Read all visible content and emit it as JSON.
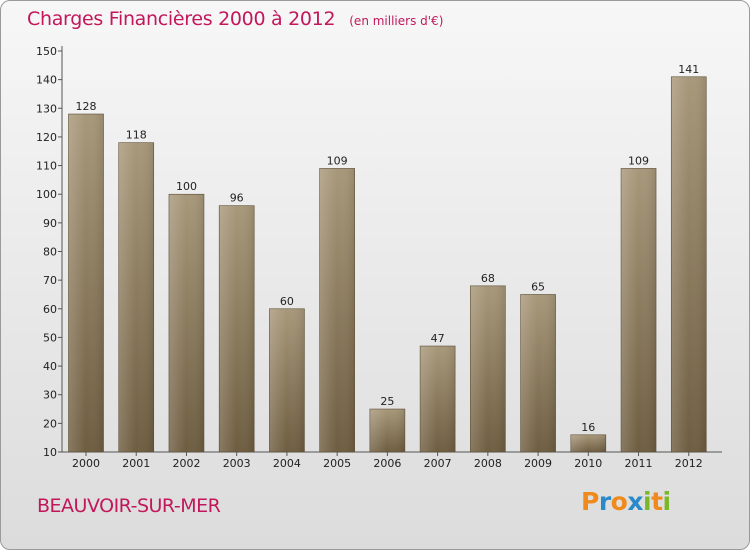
{
  "header": {
    "title": "Charges Financières 2000 à 2012",
    "unit": "(en milliers d'€)"
  },
  "footer": {
    "commune": "BEAUVOIR-SUR-MER",
    "logo_letters": [
      "P",
      "r",
      "o",
      "x",
      "i",
      "t",
      "i"
    ],
    "logo_colors": [
      "#f08a1c",
      "#2a8ac9",
      "#f08a1c",
      "#2a8ac9",
      "#7ab829",
      "#f08a1c",
      "#7ab829"
    ]
  },
  "colors": {
    "bar_top": "#a8987a",
    "bar_bottom": "#6e5d40",
    "accent": "#c2185b"
  },
  "chart_data": {
    "type": "bar",
    "title": "Charges Financières 2000 à 2012",
    "subtitle": "(en milliers d'€)",
    "categories": [
      "2000",
      "2001",
      "2002",
      "2003",
      "2004",
      "2005",
      "2006",
      "2007",
      "2008",
      "2009",
      "2010",
      "2011",
      "2012"
    ],
    "values": [
      128,
      118,
      100,
      96,
      60,
      109,
      25,
      47,
      68,
      65,
      16,
      109,
      141
    ],
    "ylim": [
      10,
      150
    ],
    "yticks": [
      10,
      20,
      30,
      40,
      50,
      60,
      70,
      80,
      90,
      100,
      110,
      120,
      130,
      140,
      150
    ],
    "grid": false,
    "legend": "none"
  }
}
